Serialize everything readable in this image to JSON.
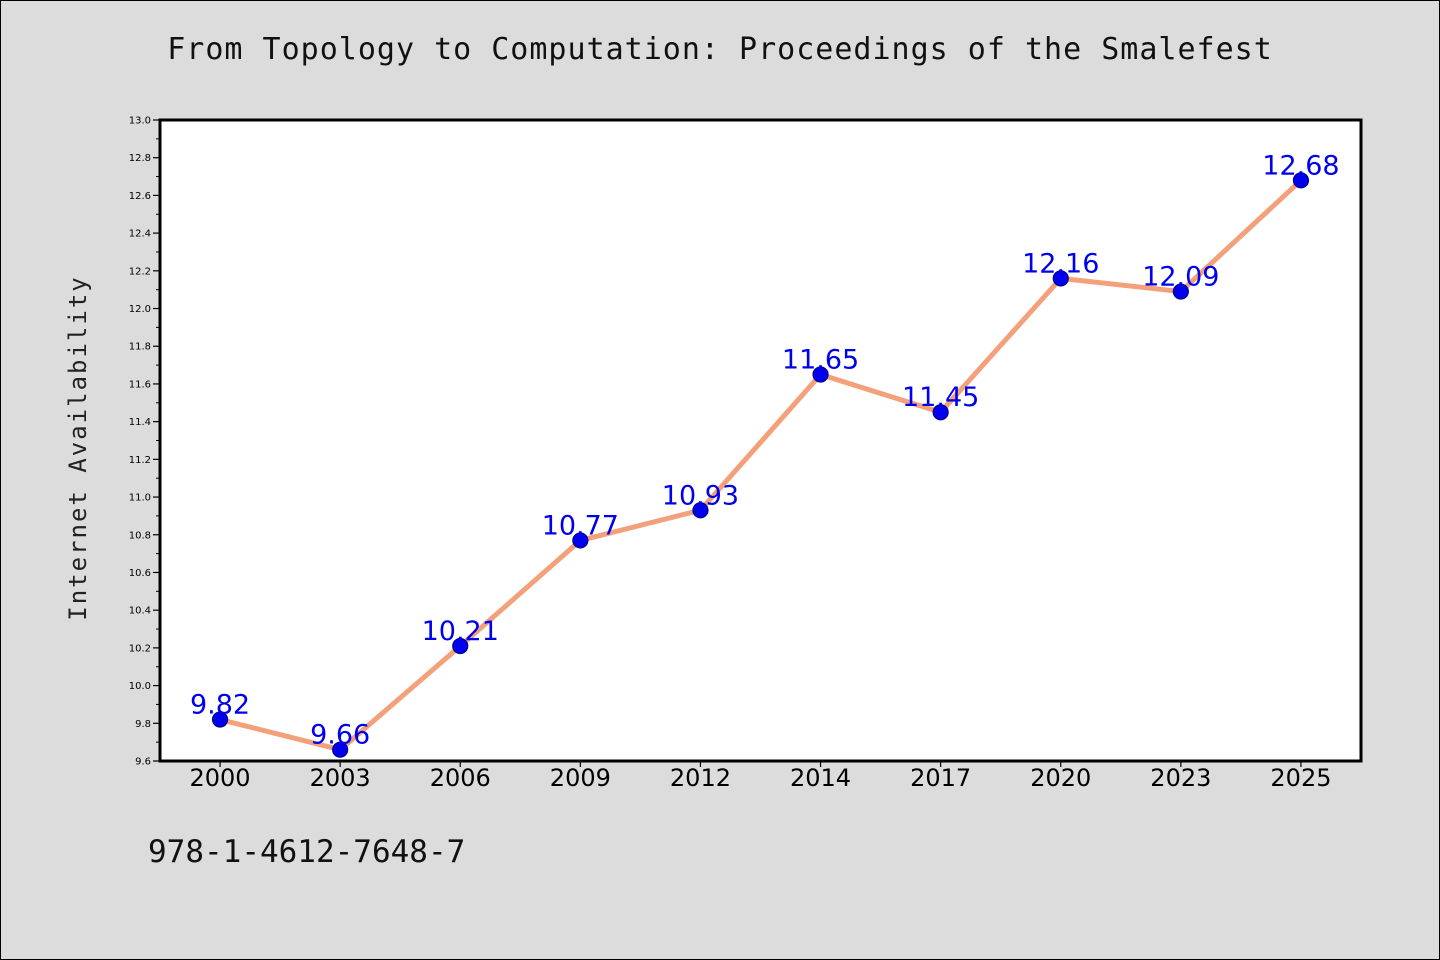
{
  "header": {
    "title": "From Topology to Computation: Proceedings of the Smalefest"
  },
  "footer": {
    "isbn": "978-1-4612-7648-7"
  },
  "chart_data": {
    "type": "line",
    "title": "From Topology to Computation: Proceedings of the Smalefest",
    "xlabel": "",
    "ylabel": "Internet Availability",
    "categories": [
      "2000",
      "2003",
      "2006",
      "2009",
      "2012",
      "2014",
      "2017",
      "2020",
      "2023",
      "2025"
    ],
    "series": [
      {
        "values": [
          9.82,
          9.66,
          10.21,
          10.77,
          10.93,
          11.65,
          11.45,
          12.16,
          12.09,
          12.68
        ]
      }
    ],
    "data_labels": [
      "9.82",
      "9.66",
      "10.21",
      "10.77",
      "10.93",
      "11.65",
      "11.45",
      "12.16",
      "12.09",
      "12.68"
    ],
    "ylim": [
      9.6,
      13.0
    ],
    "yticks": [
      "9.6",
      "9.8",
      "10.0",
      "10.2",
      "10.4",
      "10.6",
      "10.8",
      "11.0",
      "11.2",
      "11.4",
      "11.6",
      "11.8",
      "12.0",
      "12.2",
      "12.4",
      "12.6",
      "12.8",
      "13.0"
    ],
    "grid": false,
    "legend": "none",
    "colors": {
      "line": "#f4a07a",
      "marker": "#0000ee",
      "marker_edge": "#00008b",
      "label": "#0000ee"
    }
  }
}
